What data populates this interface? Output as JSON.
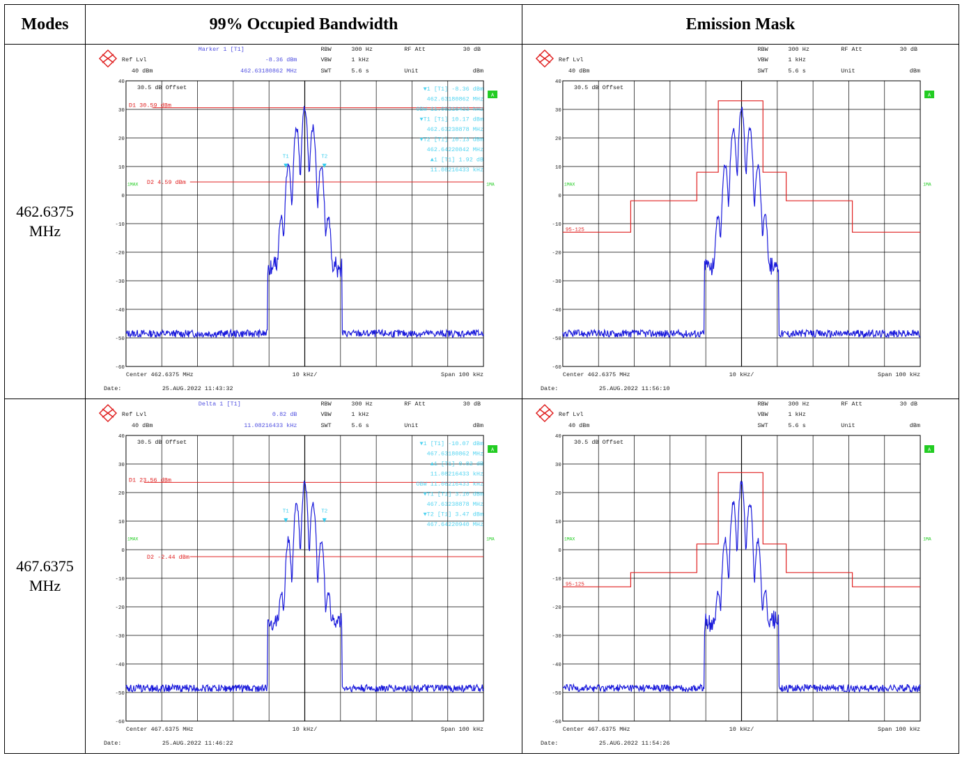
{
  "table": {
    "headers": [
      "Modes",
      "99% Occupied Bandwidth",
      "Emission Mask"
    ],
    "rows": [
      {
        "mode_line1": "462.6375",
        "mode_line2": "MHz"
      },
      {
        "mode_line1": "467.6375",
        "mode_line2": "MHz"
      }
    ]
  },
  "plots": [
    {
      "id": "obw-462",
      "kind": "obw",
      "marker_title": "Marker 1 [T1]",
      "marker_value": "-8.36 dBm",
      "marker_freq": "462.63180862 MHz",
      "rbw": "300 Hz",
      "vbw": "1 kHz",
      "swt": "5.6 s",
      "rfatt": "30 dB",
      "unit": "dBm",
      "ref_lvl_label": "Ref Lvl",
      "ref_lvl": "40 dBm",
      "offset": "30.5 dB Offset",
      "center": "Center 462.6375 MHz",
      "div": "10 kHz/",
      "span": "Span 100 kHz",
      "date_label": "Date:",
      "date": "25.AUG.2022  11:43:32",
      "d1_label": "D1 30.59 dBm",
      "d1": 30.59,
      "d2_label": "D2 4.59 dBm",
      "d2": 4.59,
      "peak": 30.6,
      "marker_list": [
        "▼1  [T1]          -8.36 dBm",
        "462.63180862 MHz",
        "OBW       11.08216433 kHz",
        "▼T1  [T1]         10.17 dBm",
        "462.63238878 MHz",
        "▼T2  [T1]         10.13 dBm",
        "462.64220842 MHz",
        "▲1  [T1]           1.92 dB",
        "11.08216433 kHz"
      ],
      "trace_label": "1MAX",
      "trace_label_r": "1MA",
      "badge": "A"
    },
    {
      "id": "mask-462",
      "kind": "mask",
      "rbw": "300 Hz",
      "vbw": "1 kHz",
      "swt": "5.6 s",
      "rfatt": "30 dB",
      "unit": "dBm",
      "ref_lvl_label": "Ref Lvl",
      "ref_lvl": "40 dBm",
      "offset": "30.5 dB Offset",
      "center": "Center 462.6375 MHz",
      "div": "10 kHz/",
      "span": "Span 100 kHz",
      "date_label": "Date:",
      "date": "25.AUG.2022  11:56:10",
      "mask_label": "95-125",
      "mask_levels": [
        -13,
        -2,
        8,
        33
      ],
      "peak": 30.6,
      "trace_label": "1MAX",
      "trace_label_r": "1MA",
      "badge": "A"
    },
    {
      "id": "obw-467",
      "kind": "obw",
      "marker_title": "Delta 1 [T1]",
      "marker_value": "0.82 dB",
      "marker_freq": "11.08216433 kHz",
      "rbw": "300 Hz",
      "vbw": "1 kHz",
      "swt": "5.6 s",
      "rfatt": "30 dB",
      "unit": "dBm",
      "ref_lvl_label": "Ref Lvl",
      "ref_lvl": "40 dBm",
      "offset": "30.5 dB Offset",
      "center": "Center 467.6375 MHz",
      "div": "10 kHz/",
      "span": "Span 100 kHz",
      "date_label": "Date:",
      "date": "25.AUG.2022  11:46:22",
      "d1_label": "D1 23.56 dBm",
      "d1": 23.56,
      "d2_label": "D2 -2.44 dBm",
      "d2": -2.44,
      "peak": 23.6,
      "marker_list": [
        "▼1  [T1]         -10.07 dBm",
        "467.63180862 MHz",
        "▲1  [T1]           0.82 dB",
        "11.08216433 kHz",
        "OBW       11.08216433 kHz",
        "▼T1  [T1]          3.10 dBm",
        "467.63238878 MHz",
        "▼T2  [T1]          3.47 dBm",
        "467.64220940 MHz"
      ],
      "trace_label": "1MAX",
      "trace_label_r": "1MA",
      "badge": "A"
    },
    {
      "id": "mask-467",
      "kind": "mask",
      "rbw": "300 Hz",
      "vbw": "1 kHz",
      "swt": "5.6 s",
      "rfatt": "30 dB",
      "unit": "dBm",
      "ref_lvl_label": "Ref Lvl",
      "ref_lvl": "40 dBm",
      "offset": "30.5 dB Offset",
      "center": "Center 467.6375 MHz",
      "div": "10 kHz/",
      "span": "Span 100 kHz",
      "date_label": "Date:",
      "date": "25.AUG.2022  11:54:26",
      "mask_label": "95-125",
      "mask_levels": [
        -13,
        -8,
        2,
        27
      ],
      "peak": 23.6,
      "trace_label": "1MAX",
      "trace_label_r": "1MA",
      "badge": "A"
    }
  ],
  "axis": {
    "y_ticks": [
      40,
      30,
      20,
      10,
      0,
      -10,
      -20,
      -30,
      -40,
      -50,
      -60
    ]
  },
  "colors": {
    "trace": "#1a1adb",
    "line": "#e02020",
    "marker": "#33ccee",
    "badge": "#22cc22",
    "header": "#5050e0"
  }
}
